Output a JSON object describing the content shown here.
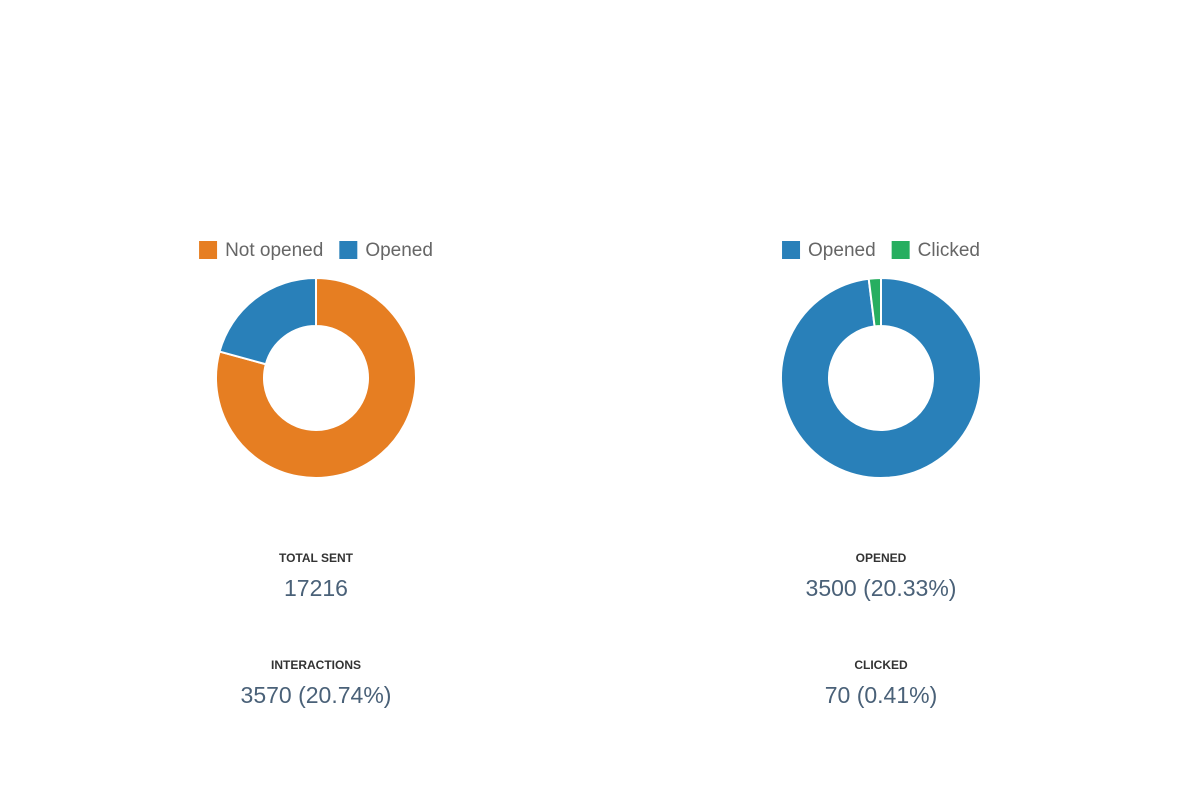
{
  "chart_data": [
    {
      "type": "donut",
      "categories": [
        "Not opened",
        "Opened"
      ],
      "values": [
        13646,
        3570
      ],
      "colors": [
        "#e67e22",
        "#2980b9"
      ]
    },
    {
      "type": "donut",
      "categories": [
        "Opened",
        "Clicked"
      ],
      "values": [
        3500,
        70
      ],
      "colors": [
        "#2980b9",
        "#27ae60"
      ]
    }
  ],
  "stats": [
    [
      {
        "label": "TOTAL SENT",
        "value": 17216
      },
      {
        "label": "INTERACTIONS",
        "value": "3570 (20.74%)"
      }
    ],
    [
      {
        "label": "OPENED",
        "value": "3500 (20.33%)"
      },
      {
        "label": "CLICKED",
        "value": "70 (0.41%)"
      }
    ]
  ]
}
